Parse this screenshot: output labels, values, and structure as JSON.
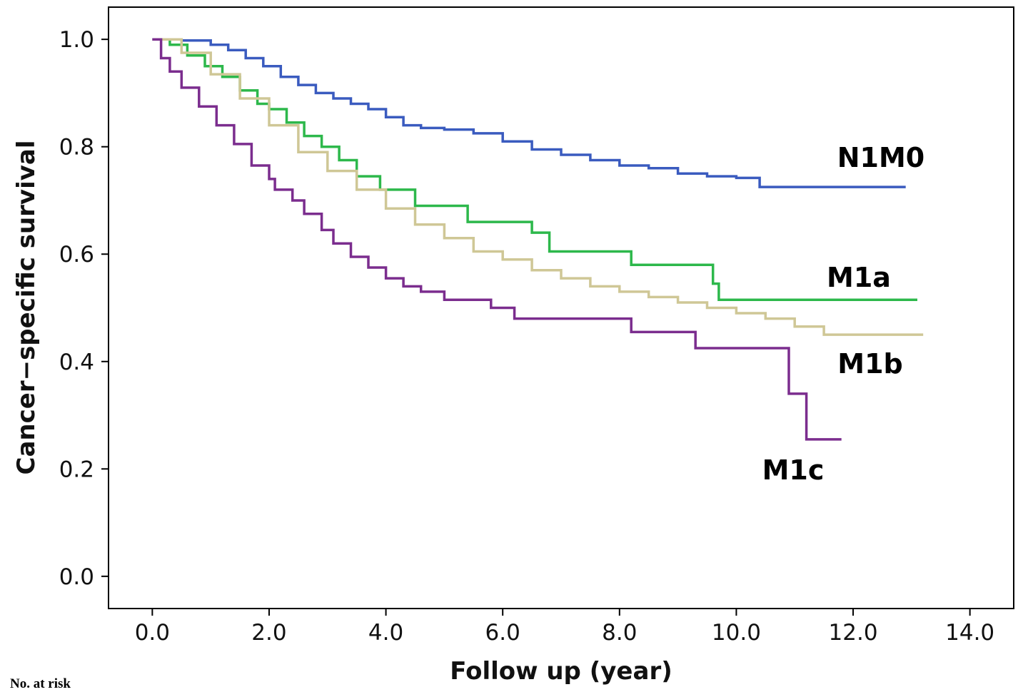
{
  "chart_data": {
    "type": "line",
    "title": "",
    "xlabel": "Follow up (year)",
    "ylabel": "Cancer−specific survival",
    "xlim": [
      -0.75,
      14.75
    ],
    "ylim": [
      -0.06,
      1.06
    ],
    "x_ticks": [
      "0.0",
      "2.0",
      "4.0",
      "6.0",
      "8.0",
      "10.0",
      "12.0",
      "14.0"
    ],
    "y_ticks": [
      "0.0",
      "0.2",
      "0.4",
      "0.6",
      "0.8",
      "1.0"
    ],
    "grid": false,
    "legend": "inline labels at line ends",
    "series": [
      {
        "name": "N1M0",
        "color": "#3a5bbf",
        "step": true,
        "x": [
          0,
          0.5,
          1.0,
          1.3,
          1.6,
          1.9,
          2.2,
          2.5,
          2.8,
          3.1,
          3.4,
          3.7,
          4.0,
          4.3,
          4.6,
          5.0,
          5.5,
          6.0,
          6.5,
          7.0,
          7.5,
          8.0,
          8.5,
          9.0,
          9.5,
          10.0,
          10.4,
          12.9
        ],
        "y": [
          1.0,
          0.998,
          0.99,
          0.98,
          0.965,
          0.95,
          0.93,
          0.915,
          0.9,
          0.89,
          0.88,
          0.87,
          0.855,
          0.84,
          0.835,
          0.832,
          0.825,
          0.81,
          0.795,
          0.785,
          0.775,
          0.765,
          0.76,
          0.75,
          0.745,
          0.742,
          0.725,
          0.725
        ]
      },
      {
        "name": "M1a",
        "color": "#2db84b",
        "step": true,
        "x": [
          0,
          0.3,
          0.6,
          0.9,
          1.2,
          1.5,
          1.8,
          2.0,
          2.3,
          2.6,
          2.9,
          3.2,
          3.5,
          3.9,
          4.5,
          5.4,
          6.5,
          6.8,
          8.2,
          9.6,
          9.7,
          13.1
        ],
        "y": [
          1.0,
          0.99,
          0.97,
          0.95,
          0.93,
          0.905,
          0.88,
          0.87,
          0.845,
          0.82,
          0.8,
          0.775,
          0.745,
          0.72,
          0.69,
          0.66,
          0.64,
          0.605,
          0.58,
          0.545,
          0.515,
          0.515
        ]
      },
      {
        "name": "M1b",
        "color": "#cfc796",
        "step": true,
        "x": [
          0,
          0.5,
          1.0,
          1.5,
          2.0,
          2.5,
          3.0,
          3.5,
          4.0,
          4.5,
          5.0,
          5.5,
          6.0,
          6.5,
          7.0,
          7.5,
          8.0,
          8.5,
          9.0,
          9.5,
          10.0,
          10.5,
          11.0,
          11.5,
          13.2
        ],
        "y": [
          1.0,
          0.975,
          0.935,
          0.89,
          0.84,
          0.79,
          0.755,
          0.72,
          0.685,
          0.655,
          0.63,
          0.605,
          0.59,
          0.57,
          0.555,
          0.54,
          0.53,
          0.52,
          0.51,
          0.5,
          0.49,
          0.48,
          0.465,
          0.45,
          0.45
        ]
      },
      {
        "name": "M1c",
        "color": "#7b2d8e",
        "step": true,
        "x": [
          0,
          0.15,
          0.3,
          0.5,
          0.8,
          1.1,
          1.4,
          1.7,
          2.0,
          2.1,
          2.4,
          2.6,
          2.9,
          3.1,
          3.4,
          3.7,
          4.0,
          4.3,
          4.6,
          5.0,
          5.8,
          6.2,
          8.2,
          9.3,
          10.9,
          11.2,
          11.8
        ],
        "y": [
          1.0,
          0.965,
          0.94,
          0.91,
          0.875,
          0.84,
          0.805,
          0.765,
          0.74,
          0.72,
          0.7,
          0.675,
          0.645,
          0.62,
          0.595,
          0.575,
          0.555,
          0.54,
          0.53,
          0.515,
          0.5,
          0.48,
          0.455,
          0.425,
          0.34,
          0.255,
          0.255
        ]
      }
    ],
    "annotations": [
      "N1M0",
      "M1a",
      "M1b",
      "M1c"
    ]
  },
  "footnote": "No. at risk"
}
